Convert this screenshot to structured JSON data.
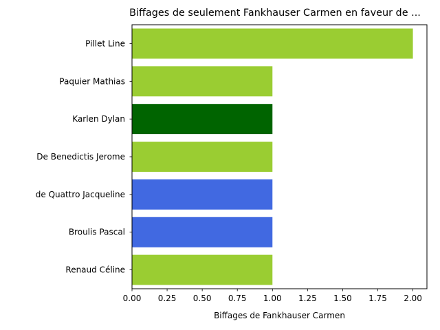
{
  "chart_data": {
    "type": "bar",
    "orientation": "horizontal",
    "title": "Biffages de seulement Fankhauser Carmen en faveur de ...",
    "xlabel": "Biffages de Fankhauser Carmen",
    "ylabel": "",
    "categories": [
      "Pillet Line",
      "Paquier Mathias",
      "Karlen Dylan",
      "De Benedictis Jerome",
      "de Quattro Jacqueline",
      "Broulis Pascal",
      "Renaud Céline"
    ],
    "values": [
      2,
      1,
      1,
      1,
      1,
      1,
      1
    ],
    "bar_colors": [
      "#9acd32",
      "#9acd32",
      "#006400",
      "#9acd32",
      "#4169e1",
      "#4169e1",
      "#9acd32"
    ],
    "xlim": [
      0,
      2.1
    ],
    "xticks": [
      "0.00",
      "0.25",
      "0.50",
      "0.75",
      "1.00",
      "1.25",
      "1.50",
      "1.75",
      "2.00"
    ],
    "grid": false,
    "legend": false
  }
}
